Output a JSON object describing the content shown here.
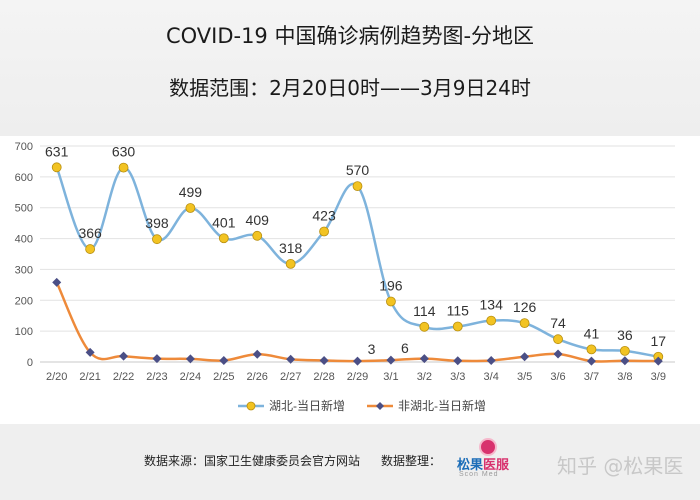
{
  "chart_data": {
    "type": "line",
    "title": "COVID-19 中国确诊病例趋势图-分地区",
    "subtitle": "数据范围：2月20日0时——3月9日24时",
    "categories": [
      "2/20",
      "2/21",
      "2/22",
      "2/23",
      "2/24",
      "2/25",
      "2/26",
      "2/27",
      "2/28",
      "2/29",
      "3/1",
      "3/2",
      "3/3",
      "3/4",
      "3/5",
      "3/6",
      "3/7",
      "3/8",
      "3/9"
    ],
    "series": [
      {
        "name": "湖北-当日新增",
        "color": "#7eb3dc",
        "marker_color": "#f2c322",
        "marker": "circle",
        "values": [
          631,
          366,
          630,
          398,
          499,
          401,
          409,
          318,
          423,
          570,
          196,
          114,
          115,
          134,
          126,
          74,
          41,
          36,
          17
        ],
        "labels": [
          "631",
          "366",
          "630",
          "398",
          "499",
          "401",
          "409",
          "318",
          "423",
          "570",
          "196",
          "114",
          "115",
          "134",
          "126",
          "74",
          "41",
          "36",
          "17"
        ]
      },
      {
        "name": "非湖北-当日新增",
        "color": "#ee8a3a",
        "marker_color": "#4b4f86",
        "marker": "diamond",
        "values": [
          258,
          31,
          19,
          11,
          10,
          5,
          25,
          9,
          5,
          3,
          6,
          11,
          4,
          5,
          17,
          26,
          3,
          4,
          3
        ],
        "labels": [
          "",
          "",
          "",
          "",
          "",
          "",
          "",
          "",
          "",
          "3",
          "6",
          "",
          "",
          "",
          "",
          "",
          "",
          "",
          ""
        ]
      }
    ],
    "yticks": [
      "0",
      "100",
      "200",
      "300",
      "400",
      "500",
      "600",
      "700"
    ],
    "ylim": [
      0,
      700
    ],
    "grid": true,
    "legend": "bottom",
    "xlabel": "",
    "ylabel": ""
  },
  "footer": {
    "source": "数据来源：国家卫生健康委员会官方网站",
    "arranger": "数据整理：",
    "logo_text_a": "松果",
    "logo_text_b": "医服",
    "logo_sub": "Scon Med",
    "watermark": "知乎 @松果医"
  }
}
